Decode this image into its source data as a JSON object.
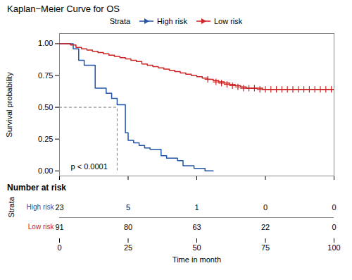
{
  "chart_data": {
    "type": "line",
    "title": "Kaplan−Meier Curve for OS",
    "xlabel": "Time in month",
    "ylabel": "Survival probability",
    "xlim": [
      0,
      100
    ],
    "xticks": [
      0,
      25,
      50,
      75,
      100
    ],
    "ylim": [
      -0.04,
      1.08
    ],
    "yticks": [
      {
        "value": 0,
        "label": "0.00"
      },
      0.25,
      {
        "value": 0.5,
        "label": "0.50"
      },
      0.75,
      {
        "value": 1,
        "label": "1.00"
      }
    ],
    "legend": "top",
    "legend_title": "Strata",
    "series": [
      {
        "name": "High risk",
        "color": "#2255aa",
        "type": "step",
        "x": [
          0,
          3,
          5,
          7,
          9,
          11,
          13,
          15,
          17,
          19,
          21,
          23,
          24,
          25,
          27,
          29,
          31,
          33,
          35,
          37,
          39,
          41,
          43,
          45,
          47,
          49,
          51,
          53,
          56
        ],
        "values": [
          1.0,
          1.0,
          0.96,
          0.87,
          0.83,
          0.83,
          0.65,
          0.65,
          0.61,
          0.57,
          0.52,
          0.52,
          0.3,
          0.24,
          0.22,
          0.2,
          0.18,
          0.17,
          0.17,
          0.12,
          0.1,
          0.1,
          0.08,
          0.04,
          0.04,
          0.02,
          0.02,
          0.0,
          0.0
        ]
      },
      {
        "name": "Low risk",
        "color": "#cc2222",
        "type": "step",
        "marker": "plus",
        "x": [
          0,
          2,
          4,
          6,
          8,
          10,
          12,
          14,
          16,
          18,
          20,
          22,
          24,
          26,
          28,
          30,
          32,
          34,
          36,
          38,
          40,
          42,
          44,
          46,
          48,
          50,
          52,
          54,
          56,
          58,
          60,
          62,
          64,
          66,
          68,
          70,
          72,
          74,
          76,
          78,
          80,
          82,
          84,
          86,
          88,
          90,
          92,
          94,
          96,
          98,
          100
        ],
        "values": [
          1.0,
          1.0,
          0.99,
          0.97,
          0.96,
          0.95,
          0.94,
          0.93,
          0.92,
          0.91,
          0.9,
          0.89,
          0.88,
          0.87,
          0.86,
          0.84,
          0.83,
          0.82,
          0.81,
          0.8,
          0.79,
          0.78,
          0.77,
          0.76,
          0.75,
          0.74,
          0.73,
          0.72,
          0.71,
          0.7,
          0.69,
          0.68,
          0.67,
          0.66,
          0.65,
          0.65,
          0.65,
          0.64,
          0.64,
          0.64,
          0.64,
          0.64,
          0.64,
          0.64,
          0.64,
          0.64,
          0.64,
          0.64,
          0.64,
          0.64,
          0.64
        ],
        "censor_x": [
          54,
          57,
          59,
          61,
          63,
          65,
          67,
          69,
          71,
          73,
          75,
          77,
          79,
          81,
          83,
          85,
          87,
          89,
          91,
          93,
          95,
          97,
          99
        ],
        "censor_values": [
          0.72,
          0.7,
          0.69,
          0.68,
          0.67,
          0.66,
          0.65,
          0.65,
          0.65,
          0.64,
          0.64,
          0.64,
          0.64,
          0.64,
          0.64,
          0.64,
          0.64,
          0.64,
          0.64,
          0.64,
          0.64,
          0.64,
          0.64
        ]
      }
    ],
    "median_line": {
      "x": 21,
      "y": 0.5,
      "x0": 0,
      "y0": 0,
      "color": "gray",
      "line_style": "dashed"
    },
    "annotations": [
      {
        "text": "p < 0.0001"
      }
    ],
    "risk_table": {
      "title": "Number at risk",
      "label": "Strata",
      "times": [
        0,
        25,
        50,
        75,
        100
      ],
      "rows": [
        {
          "name": "High risk",
          "color": "#2255aa",
          "values": [
            23,
            5,
            1,
            0,
            0
          ]
        },
        {
          "name": "Low risk",
          "color": "#cc2222",
          "values": [
            91,
            80,
            63,
            22,
            0
          ]
        }
      ]
    }
  }
}
